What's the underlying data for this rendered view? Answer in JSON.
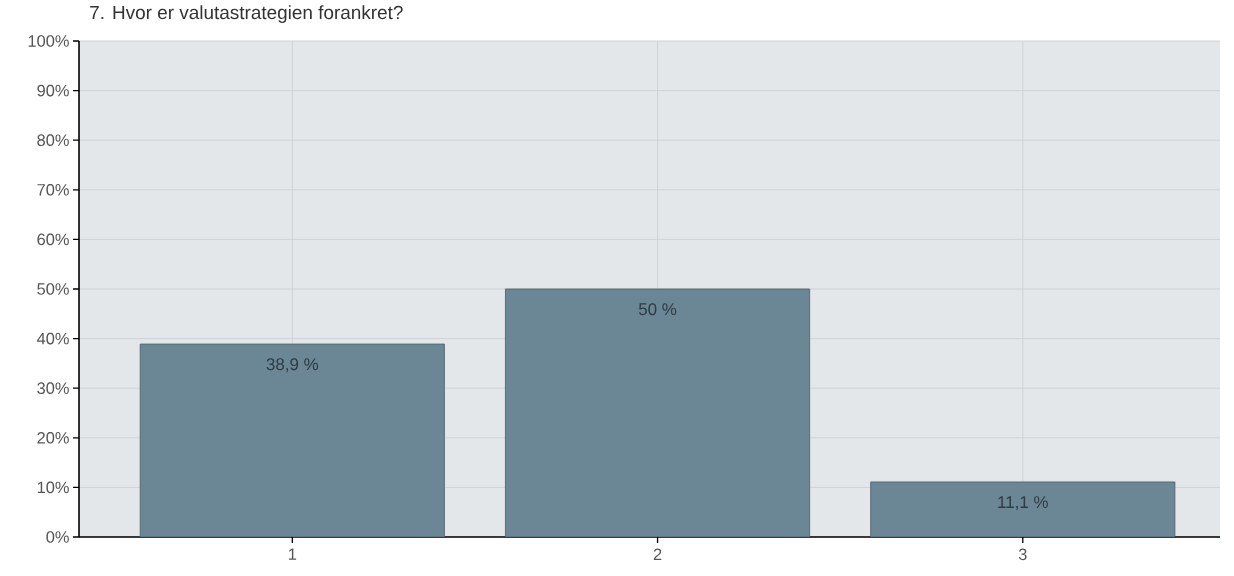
{
  "chart_data": {
    "type": "bar",
    "title": "7. Hvor er valutastrategien forankret?",
    "categories": [
      "1",
      "2",
      "3"
    ],
    "values": [
      38.9,
      50,
      11.1
    ],
    "color": "#6b8694",
    "value_labels": [
      "38,9 %",
      "50 %",
      "11,1 %"
    ],
    "ylim": [
      0,
      100
    ],
    "yticks": [
      {
        "value": 0,
        "label": "0%"
      },
      {
        "value": 10,
        "label": "10%"
      },
      {
        "value": 20,
        "label": "20%"
      },
      {
        "value": 30,
        "label": "30%"
      },
      {
        "value": 40,
        "label": "40%"
      },
      {
        "value": 50,
        "label": "50%"
      },
      {
        "value": 60,
        "label": "60%"
      },
      {
        "value": 70,
        "label": "70%"
      },
      {
        "value": 80,
        "label": "80%"
      },
      {
        "value": 90,
        "label": "90%"
      },
      {
        "value": 100,
        "label": "100%"
      }
    ],
    "grid": true
  }
}
